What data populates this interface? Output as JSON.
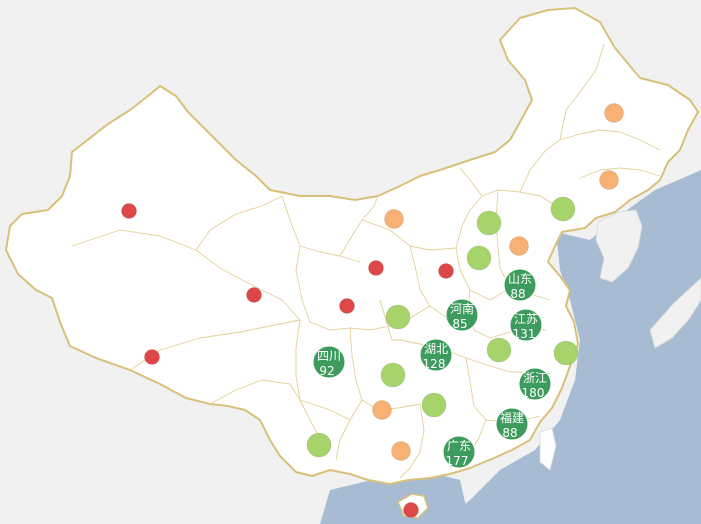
{
  "colors": {
    "sea": "#a7bcd3",
    "neighbor_land": "#f1f1f1",
    "china_fill": "#ffffff",
    "border": "#d9c07a",
    "internal_border": "#e3cf98",
    "dark_green": "#3d9c5d",
    "light_green": "#a6d46a",
    "orange": "#f8b174",
    "red": "#dd4747"
  },
  "markers": [
    {
      "name": "山东",
      "value": "88",
      "level": "dark_green",
      "labeled": true
    },
    {
      "name": "河南",
      "value": "85",
      "level": "dark_green",
      "labeled": true
    },
    {
      "name": "江苏",
      "value": "131",
      "level": "dark_green",
      "labeled": true
    },
    {
      "name": "湖北",
      "value": "128",
      "level": "dark_green",
      "labeled": true
    },
    {
      "name": "四川",
      "value": "92",
      "level": "dark_green",
      "labeled": true
    },
    {
      "name": "浙江",
      "value": "180",
      "level": "dark_green",
      "labeled": true
    },
    {
      "name": "福建",
      "value": "88",
      "level": "dark_green",
      "labeled": true
    },
    {
      "name": "广东",
      "value": "177",
      "level": "dark_green",
      "labeled": true
    },
    {
      "name": "",
      "value": "",
      "level": "light_green",
      "labeled": false
    },
    {
      "name": "",
      "value": "",
      "level": "light_green",
      "labeled": false
    },
    {
      "name": "",
      "value": "",
      "level": "light_green",
      "labeled": false
    },
    {
      "name": "",
      "value": "",
      "level": "light_green",
      "labeled": false
    },
    {
      "name": "",
      "value": "",
      "level": "light_green",
      "labeled": false
    },
    {
      "name": "",
      "value": "",
      "level": "light_green",
      "labeled": false
    },
    {
      "name": "",
      "value": "",
      "level": "light_green",
      "labeled": false
    },
    {
      "name": "",
      "value": "",
      "level": "light_green",
      "labeled": false
    },
    {
      "name": "",
      "value": "",
      "level": "light_green",
      "labeled": false
    },
    {
      "name": "",
      "value": "",
      "level": "orange",
      "labeled": false
    },
    {
      "name": "",
      "value": "",
      "level": "orange",
      "labeled": false
    },
    {
      "name": "",
      "value": "",
      "level": "orange",
      "labeled": false
    },
    {
      "name": "",
      "value": "",
      "level": "orange",
      "labeled": false
    },
    {
      "name": "",
      "value": "",
      "level": "orange",
      "labeled": false
    },
    {
      "name": "",
      "value": "",
      "level": "orange",
      "labeled": false
    },
    {
      "name": "",
      "value": "",
      "level": "red",
      "labeled": false
    },
    {
      "name": "",
      "value": "",
      "level": "red",
      "labeled": false
    },
    {
      "name": "",
      "value": "",
      "level": "red",
      "labeled": false
    },
    {
      "name": "",
      "value": "",
      "level": "red",
      "labeled": false
    },
    {
      "name": "",
      "value": "",
      "level": "red",
      "labeled": false
    },
    {
      "name": "",
      "value": "",
      "level": "red",
      "labeled": false
    },
    {
      "name": "",
      "value": "",
      "level": "red",
      "labeled": false
    }
  ]
}
